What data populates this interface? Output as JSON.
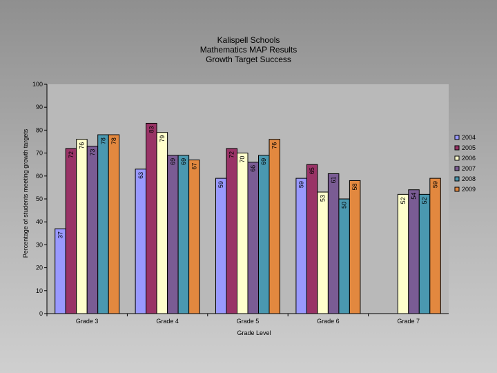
{
  "chart_data": {
    "type": "bar",
    "title": [
      "Kalispell Schools",
      "Mathematics MAP Results",
      "Growth Target Success"
    ],
    "xlabel": "Grade Level",
    "ylabel": "Percentage of students meeting growth targets",
    "ylim": [
      0,
      100
    ],
    "yticks": [
      "0",
      "10",
      "20",
      "30",
      "40",
      "50",
      "60",
      "70",
      "80",
      "90",
      "100"
    ],
    "categories": [
      "Grade 3",
      "Grade 4",
      "Grade 5",
      "Grade 6",
      "Grade 7"
    ],
    "grid": false,
    "legend_position": "right",
    "series": [
      {
        "name": "2004",
        "color": "#9999ff",
        "values": [
          37,
          63,
          59,
          59,
          null
        ],
        "labels": [
          "37",
          "63",
          "59",
          "59",
          ""
        ]
      },
      {
        "name": "2005",
        "color": "#993366",
        "values": [
          72,
          83,
          72,
          65,
          null
        ],
        "labels": [
          "72",
          "83",
          "72",
          "65",
          ""
        ]
      },
      {
        "name": "2006",
        "color": "#ffffcc",
        "values": [
          76,
          79,
          70,
          53,
          52
        ],
        "labels": [
          "76",
          "79",
          "70",
          "53",
          "52"
        ]
      },
      {
        "name": "2007",
        "color": "#7a5c94",
        "values": [
          73,
          69,
          66,
          61,
          54
        ],
        "labels": [
          "73",
          "69",
          "66",
          "61",
          "54"
        ]
      },
      {
        "name": "2008",
        "color": "#4a98b0",
        "values": [
          78,
          69,
          69,
          50,
          52
        ],
        "labels": [
          "78",
          "69",
          "69",
          "50",
          "52"
        ]
      },
      {
        "name": "2009",
        "color": "#e2883f",
        "values": [
          78,
          67,
          76,
          58,
          59
        ],
        "labels": [
          "78",
          "67",
          "76",
          "58",
          "59"
        ]
      }
    ]
  }
}
